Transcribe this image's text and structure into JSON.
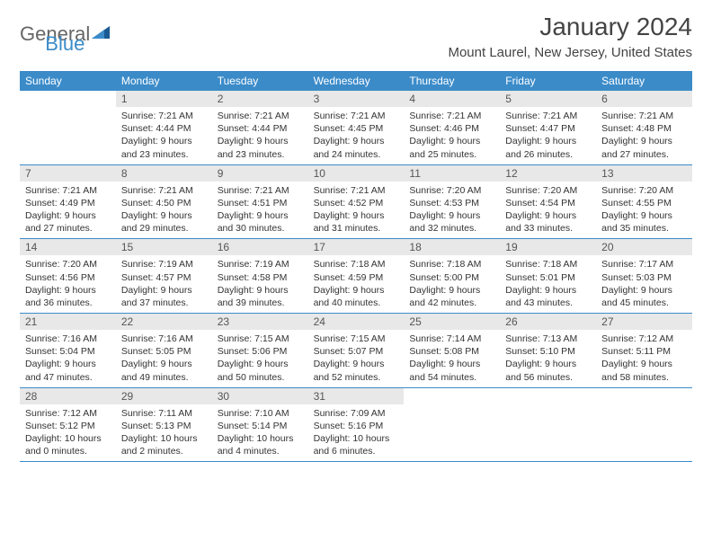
{
  "logo": {
    "general": "General",
    "blue": "Blue"
  },
  "title": "January 2024",
  "location": "Mount Laurel, New Jersey, United States",
  "colors": {
    "header_bg": "#3b8bc9",
    "header_text": "#ffffff",
    "daynum_bg": "#e8e8e8",
    "border": "#3b8bc9",
    "body_text": "#333333"
  },
  "day_names": [
    "Sunday",
    "Monday",
    "Tuesday",
    "Wednesday",
    "Thursday",
    "Friday",
    "Saturday"
  ],
  "weeks": [
    [
      {
        "n": "",
        "sunrise": "",
        "sunset": "",
        "daylight": ""
      },
      {
        "n": "1",
        "sunrise": "Sunrise: 7:21 AM",
        "sunset": "Sunset: 4:44 PM",
        "daylight": "Daylight: 9 hours and 23 minutes."
      },
      {
        "n": "2",
        "sunrise": "Sunrise: 7:21 AM",
        "sunset": "Sunset: 4:44 PM",
        "daylight": "Daylight: 9 hours and 23 minutes."
      },
      {
        "n": "3",
        "sunrise": "Sunrise: 7:21 AM",
        "sunset": "Sunset: 4:45 PM",
        "daylight": "Daylight: 9 hours and 24 minutes."
      },
      {
        "n": "4",
        "sunrise": "Sunrise: 7:21 AM",
        "sunset": "Sunset: 4:46 PM",
        "daylight": "Daylight: 9 hours and 25 minutes."
      },
      {
        "n": "5",
        "sunrise": "Sunrise: 7:21 AM",
        "sunset": "Sunset: 4:47 PM",
        "daylight": "Daylight: 9 hours and 26 minutes."
      },
      {
        "n": "6",
        "sunrise": "Sunrise: 7:21 AM",
        "sunset": "Sunset: 4:48 PM",
        "daylight": "Daylight: 9 hours and 27 minutes."
      }
    ],
    [
      {
        "n": "7",
        "sunrise": "Sunrise: 7:21 AM",
        "sunset": "Sunset: 4:49 PM",
        "daylight": "Daylight: 9 hours and 27 minutes."
      },
      {
        "n": "8",
        "sunrise": "Sunrise: 7:21 AM",
        "sunset": "Sunset: 4:50 PM",
        "daylight": "Daylight: 9 hours and 29 minutes."
      },
      {
        "n": "9",
        "sunrise": "Sunrise: 7:21 AM",
        "sunset": "Sunset: 4:51 PM",
        "daylight": "Daylight: 9 hours and 30 minutes."
      },
      {
        "n": "10",
        "sunrise": "Sunrise: 7:21 AM",
        "sunset": "Sunset: 4:52 PM",
        "daylight": "Daylight: 9 hours and 31 minutes."
      },
      {
        "n": "11",
        "sunrise": "Sunrise: 7:20 AM",
        "sunset": "Sunset: 4:53 PM",
        "daylight": "Daylight: 9 hours and 32 minutes."
      },
      {
        "n": "12",
        "sunrise": "Sunrise: 7:20 AM",
        "sunset": "Sunset: 4:54 PM",
        "daylight": "Daylight: 9 hours and 33 minutes."
      },
      {
        "n": "13",
        "sunrise": "Sunrise: 7:20 AM",
        "sunset": "Sunset: 4:55 PM",
        "daylight": "Daylight: 9 hours and 35 minutes."
      }
    ],
    [
      {
        "n": "14",
        "sunrise": "Sunrise: 7:20 AM",
        "sunset": "Sunset: 4:56 PM",
        "daylight": "Daylight: 9 hours and 36 minutes."
      },
      {
        "n": "15",
        "sunrise": "Sunrise: 7:19 AM",
        "sunset": "Sunset: 4:57 PM",
        "daylight": "Daylight: 9 hours and 37 minutes."
      },
      {
        "n": "16",
        "sunrise": "Sunrise: 7:19 AM",
        "sunset": "Sunset: 4:58 PM",
        "daylight": "Daylight: 9 hours and 39 minutes."
      },
      {
        "n": "17",
        "sunrise": "Sunrise: 7:18 AM",
        "sunset": "Sunset: 4:59 PM",
        "daylight": "Daylight: 9 hours and 40 minutes."
      },
      {
        "n": "18",
        "sunrise": "Sunrise: 7:18 AM",
        "sunset": "Sunset: 5:00 PM",
        "daylight": "Daylight: 9 hours and 42 minutes."
      },
      {
        "n": "19",
        "sunrise": "Sunrise: 7:18 AM",
        "sunset": "Sunset: 5:01 PM",
        "daylight": "Daylight: 9 hours and 43 minutes."
      },
      {
        "n": "20",
        "sunrise": "Sunrise: 7:17 AM",
        "sunset": "Sunset: 5:03 PM",
        "daylight": "Daylight: 9 hours and 45 minutes."
      }
    ],
    [
      {
        "n": "21",
        "sunrise": "Sunrise: 7:16 AM",
        "sunset": "Sunset: 5:04 PM",
        "daylight": "Daylight: 9 hours and 47 minutes."
      },
      {
        "n": "22",
        "sunrise": "Sunrise: 7:16 AM",
        "sunset": "Sunset: 5:05 PM",
        "daylight": "Daylight: 9 hours and 49 minutes."
      },
      {
        "n": "23",
        "sunrise": "Sunrise: 7:15 AM",
        "sunset": "Sunset: 5:06 PM",
        "daylight": "Daylight: 9 hours and 50 minutes."
      },
      {
        "n": "24",
        "sunrise": "Sunrise: 7:15 AM",
        "sunset": "Sunset: 5:07 PM",
        "daylight": "Daylight: 9 hours and 52 minutes."
      },
      {
        "n": "25",
        "sunrise": "Sunrise: 7:14 AM",
        "sunset": "Sunset: 5:08 PM",
        "daylight": "Daylight: 9 hours and 54 minutes."
      },
      {
        "n": "26",
        "sunrise": "Sunrise: 7:13 AM",
        "sunset": "Sunset: 5:10 PM",
        "daylight": "Daylight: 9 hours and 56 minutes."
      },
      {
        "n": "27",
        "sunrise": "Sunrise: 7:12 AM",
        "sunset": "Sunset: 5:11 PM",
        "daylight": "Daylight: 9 hours and 58 minutes."
      }
    ],
    [
      {
        "n": "28",
        "sunrise": "Sunrise: 7:12 AM",
        "sunset": "Sunset: 5:12 PM",
        "daylight": "Daylight: 10 hours and 0 minutes."
      },
      {
        "n": "29",
        "sunrise": "Sunrise: 7:11 AM",
        "sunset": "Sunset: 5:13 PM",
        "daylight": "Daylight: 10 hours and 2 minutes."
      },
      {
        "n": "30",
        "sunrise": "Sunrise: 7:10 AM",
        "sunset": "Sunset: 5:14 PM",
        "daylight": "Daylight: 10 hours and 4 minutes."
      },
      {
        "n": "31",
        "sunrise": "Sunrise: 7:09 AM",
        "sunset": "Sunset: 5:16 PM",
        "daylight": "Daylight: 10 hours and 6 minutes."
      },
      {
        "n": "",
        "sunrise": "",
        "sunset": "",
        "daylight": ""
      },
      {
        "n": "",
        "sunrise": "",
        "sunset": "",
        "daylight": ""
      },
      {
        "n": "",
        "sunrise": "",
        "sunset": "",
        "daylight": ""
      }
    ]
  ]
}
